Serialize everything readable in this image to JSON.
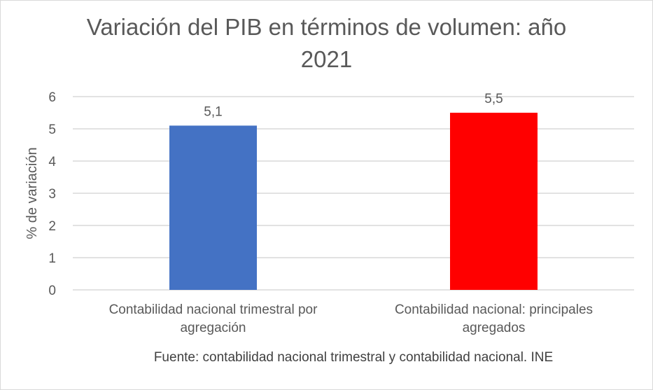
{
  "chart_data": {
    "type": "bar",
    "title_lines": [
      "Variación del PIB en términos de volumen: año",
      "2021"
    ],
    "ylabel": "% de variación",
    "xlabel": "",
    "ylim": [
      0,
      6
    ],
    "yticks": [
      "0",
      "1",
      "2",
      "3",
      "4",
      "5",
      "6"
    ],
    "grid": true,
    "categories": [
      [
        "Contabilidad nacional trimestral por",
        "agregación"
      ],
      [
        "Contabilidad nacional: principales",
        "agregados"
      ]
    ],
    "values": [
      5.1,
      5.5
    ],
    "data_labels": [
      "5,1",
      "5,5"
    ],
    "colors": [
      "#4472C4",
      "#FF0000"
    ],
    "footnote": "Fuente: contabilidad nacional trimestral y contabilidad nacional. INE"
  }
}
